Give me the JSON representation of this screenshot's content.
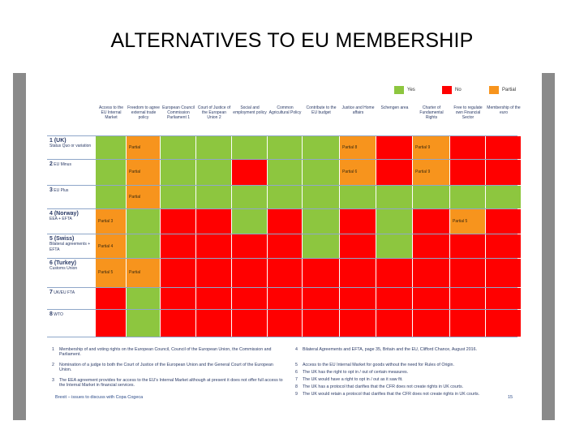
{
  "title": "ALTERNATIVES TO EU MEMBERSHIP",
  "legend": [
    {
      "label": "Yes",
      "color": "#8dc63f"
    },
    {
      "label": "No",
      "color": "#ff0000"
    },
    {
      "label": "Partial",
      "color": "#f7941d"
    }
  ],
  "columns": [
    "Access to the EU Internal Market",
    "Freedom to agree external trade policy",
    "European Council Commission Parliament 1",
    "Court of Justice of the European Union 2",
    "Social and employment policy",
    "Common Agricultural Policy",
    "Contribute to the EU budget",
    "Justice and Home affairs",
    "Schengen area",
    "Charter of Fundamental Rights",
    "Free to regulate own Financial Sector",
    "Membership of the euro"
  ],
  "rows": [
    {
      "name": "1 (UK)",
      "sub": "Status Quo or variation",
      "cells": [
        "G",
        "P",
        "G",
        "G",
        "G",
        "G",
        "G",
        "P",
        "R",
        "P",
        "R",
        "R"
      ],
      "notes": [
        "",
        "Partial",
        "",
        "",
        "",
        "",
        "",
        "Partial 8",
        "",
        "Partial 9",
        "",
        ""
      ]
    },
    {
      "name": "2",
      "name_suffix": "EU Minus",
      "sub": "",
      "cells": [
        "G",
        "P",
        "G",
        "G",
        "R",
        "G",
        "G",
        "P",
        "R",
        "P",
        "R",
        "R"
      ],
      "notes": [
        "",
        "Partial",
        "",
        "",
        "",
        "",
        "",
        "Partial 6",
        "",
        "Partial 9",
        "",
        ""
      ]
    },
    {
      "name": "3",
      "name_suffix": "EU Plus",
      "sub": "",
      "cells": [
        "G",
        "P",
        "G",
        "G",
        "G",
        "G",
        "G",
        "G",
        "G",
        "G",
        "G",
        "G"
      ],
      "notes": [
        "",
        "Partial",
        "",
        "",
        "",
        "",
        "",
        "",
        "",
        "",
        "",
        ""
      ]
    },
    {
      "name": "4  (Norway)",
      "sub": "EEA + EFTA",
      "cells": [
        "P",
        "G",
        "R",
        "R",
        "G",
        "R",
        "G",
        "R",
        "G",
        "R",
        "P",
        "R"
      ],
      "notes": [
        "Partial 3",
        "",
        "",
        "",
        "",
        "",
        "",
        "",
        "",
        "",
        "Partial 5",
        ""
      ]
    },
    {
      "name": "5 (Swiss)",
      "sub": "Bilateral agreements + EFTA",
      "cells": [
        "P",
        "G",
        "R",
        "R",
        "R",
        "R",
        "G",
        "R",
        "G",
        "R",
        "R",
        "R"
      ],
      "notes": [
        "Partial 4",
        "",
        "",
        "",
        "",
        "",
        "",
        "",
        "",
        "",
        "",
        ""
      ]
    },
    {
      "name": "6 (Turkey)",
      "sub": "Customs Union",
      "cells": [
        "P",
        "P",
        "R",
        "R",
        "R",
        "R",
        "R",
        "R",
        "R",
        "R",
        "R",
        "R"
      ],
      "notes": [
        "Partial 5",
        "Partial",
        "",
        "",
        "",
        "",
        "",
        "",
        "",
        "",
        "",
        ""
      ]
    },
    {
      "name": "7",
      "name_suffix": "UK/EU FTA",
      "sub": "",
      "cells": [
        "R",
        "G",
        "R",
        "R",
        "R",
        "R",
        "R",
        "R",
        "R",
        "R",
        "R",
        "R"
      ],
      "notes": [
        "",
        "",
        "",
        "",
        "",
        "",
        "",
        "",
        "",
        "",
        "",
        ""
      ]
    },
    {
      "name": "8",
      "name_suffix": "WTO",
      "sub": "",
      "cells": [
        "R",
        "G",
        "R",
        "R",
        "R",
        "R",
        "R",
        "R",
        "R",
        "R",
        "R",
        "R"
      ],
      "notes": [
        "",
        "",
        "",
        "",
        "",
        "",
        "",
        "",
        "",
        "",
        "",
        ""
      ]
    }
  ],
  "footnotes_left": [
    {
      "n": "1",
      "text": "Membership of and voting rights on the European Council, Council of the European Union, the Commission and Parliament."
    },
    {
      "n": "2",
      "text": "Nomination of a judge to both the Court of Justice of the European Union and the General Court of the European Union."
    },
    {
      "n": "3",
      "text": "The EEA agreement provides for access to the EU's Internal Market although at present it does not offer full access to the Internal Market in financial services."
    }
  ],
  "footnotes_right": [
    {
      "n": "4",
      "text": "Bilateral Agreements and EFTA, page 35, Britain and the EU, Clifford Chance, August 2016."
    },
    {
      "n": "5",
      "text": "Access to the EU Internal Market for goods without the need for Rules of Origin."
    },
    {
      "n": "6",
      "text": "The UK has the right to opt in / out of certain measures."
    },
    {
      "n": "7",
      "text": "The UK would have a right to opt in / out as it saw fit."
    },
    {
      "n": "8",
      "text": "The UK has a protocol that clarifies that the CFR does not create rights in UK courts."
    },
    {
      "n": "9",
      "text": "The UK would retain a protocol that clarifies that the CFR does not create rights in UK courts."
    }
  ],
  "footer_left": "Brexit – issues to discuss with Copa Cogeca",
  "footer_right": "15"
}
